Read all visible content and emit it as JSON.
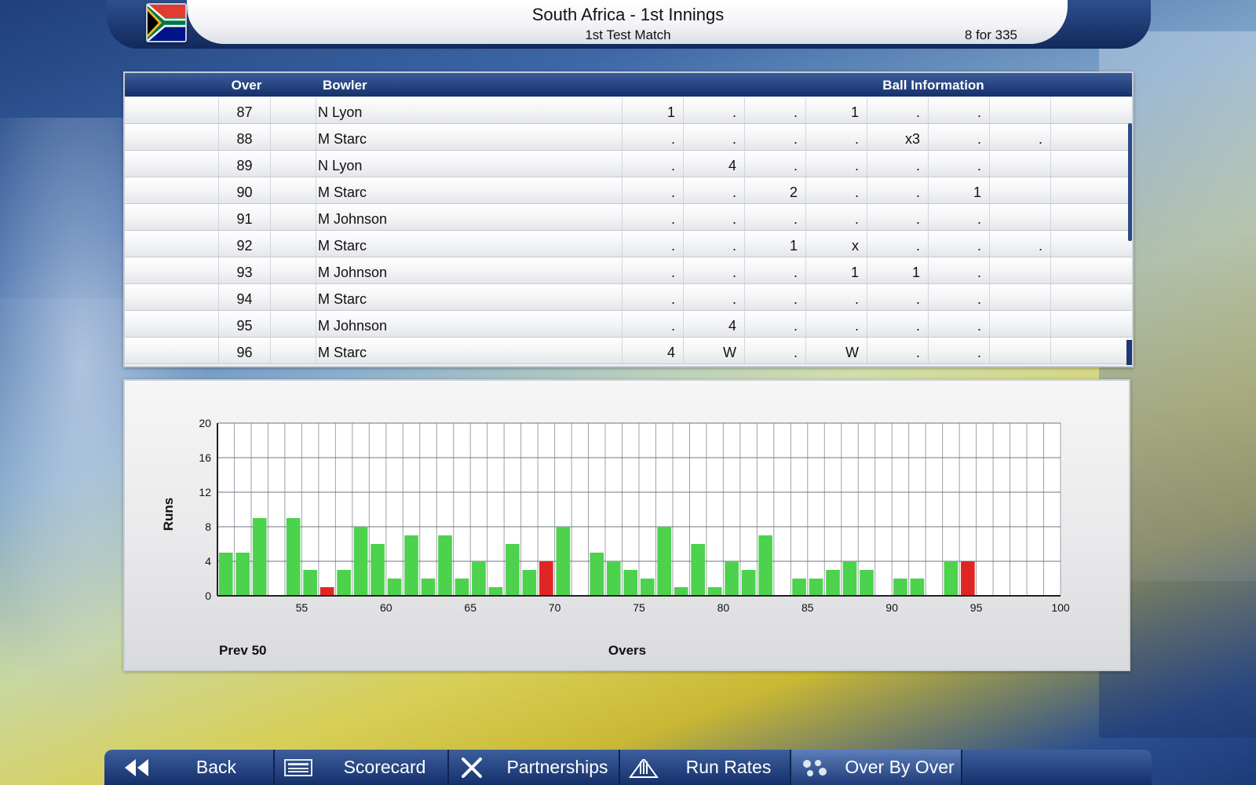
{
  "header": {
    "title": "South Africa - 1st Innings",
    "subtitle": "1st Test Match",
    "score": "8 for 335",
    "flag": "south-africa-flag"
  },
  "table": {
    "headers": {
      "over": "Over",
      "bowler": "Bowler",
      "ball_info": "Ball Information"
    },
    "rows": [
      {
        "over": "87",
        "bowler": "N Lyon",
        "balls": [
          "1",
          ".",
          ".",
          "1",
          ".",
          ".",
          ""
        ]
      },
      {
        "over": "88",
        "bowler": "M Starc",
        "balls": [
          ".",
          ".",
          ".",
          ".",
          "x3",
          ".",
          "."
        ]
      },
      {
        "over": "89",
        "bowler": "N Lyon",
        "balls": [
          ".",
          "4",
          ".",
          ".",
          ".",
          ".",
          ""
        ]
      },
      {
        "over": "90",
        "bowler": "M Starc",
        "balls": [
          ".",
          ".",
          "2",
          ".",
          ".",
          "1",
          ""
        ]
      },
      {
        "over": "91",
        "bowler": "M Johnson",
        "balls": [
          ".",
          ".",
          ".",
          ".",
          ".",
          ".",
          ""
        ]
      },
      {
        "over": "92",
        "bowler": "M Starc",
        "balls": [
          ".",
          ".",
          "1",
          "x",
          ".",
          ".",
          "."
        ]
      },
      {
        "over": "93",
        "bowler": "M Johnson",
        "balls": [
          ".",
          ".",
          ".",
          "1",
          "1",
          ".",
          ""
        ]
      },
      {
        "over": "94",
        "bowler": "M Starc",
        "balls": [
          ".",
          ".",
          ".",
          ".",
          ".",
          ".",
          ""
        ]
      },
      {
        "over": "95",
        "bowler": "M Johnson",
        "balls": [
          ".",
          "4",
          ".",
          ".",
          ".",
          ".",
          ""
        ]
      },
      {
        "over": "96",
        "bowler": "M Starc",
        "balls": [
          "4",
          "W",
          ".",
          "W",
          ".",
          ".",
          ""
        ]
      }
    ]
  },
  "chart_data": {
    "type": "bar",
    "xlabel": "Overs",
    "ylabel": "Runs",
    "xlim": [
      50,
      100
    ],
    "ylim": [
      0,
      20
    ],
    "yticks": [
      "0",
      "4",
      "8",
      "12",
      "16",
      "20"
    ],
    "xticks": [
      "55",
      "60",
      "65",
      "70",
      "75",
      "80",
      "85",
      "90",
      "95",
      "100"
    ],
    "grid": true,
    "colors": {
      "normal": "#4cd24c",
      "wicket": "#e02525"
    },
    "bars": [
      {
        "over": 51,
        "runs": 5,
        "wicket": false
      },
      {
        "over": 52,
        "runs": 5,
        "wicket": false
      },
      {
        "over": 53,
        "runs": 9,
        "wicket": false
      },
      {
        "over": 54,
        "runs": 0,
        "wicket": false
      },
      {
        "over": 55,
        "runs": 9,
        "wicket": false
      },
      {
        "over": 56,
        "runs": 3,
        "wicket": false
      },
      {
        "over": 57,
        "runs": 1,
        "wicket": true
      },
      {
        "over": 58,
        "runs": 3,
        "wicket": false
      },
      {
        "over": 59,
        "runs": 8,
        "wicket": false
      },
      {
        "over": 60,
        "runs": 6,
        "wicket": false
      },
      {
        "over": 61,
        "runs": 2,
        "wicket": false
      },
      {
        "over": 62,
        "runs": 7,
        "wicket": false
      },
      {
        "over": 63,
        "runs": 2,
        "wicket": false
      },
      {
        "over": 64,
        "runs": 7,
        "wicket": false
      },
      {
        "over": 65,
        "runs": 2,
        "wicket": false
      },
      {
        "over": 66,
        "runs": 4,
        "wicket": false
      },
      {
        "over": 67,
        "runs": 1,
        "wicket": false
      },
      {
        "over": 68,
        "runs": 6,
        "wicket": false
      },
      {
        "over": 69,
        "runs": 3,
        "wicket": false
      },
      {
        "over": 70,
        "runs": 4,
        "wicket": true
      },
      {
        "over": 71,
        "runs": 8,
        "wicket": false
      },
      {
        "over": 72,
        "runs": 0,
        "wicket": false
      },
      {
        "over": 73,
        "runs": 5,
        "wicket": false
      },
      {
        "over": 74,
        "runs": 4,
        "wicket": false
      },
      {
        "over": 75,
        "runs": 3,
        "wicket": false
      },
      {
        "over": 76,
        "runs": 2,
        "wicket": false
      },
      {
        "over": 77,
        "runs": 8,
        "wicket": false
      },
      {
        "over": 78,
        "runs": 1,
        "wicket": false
      },
      {
        "over": 79,
        "runs": 6,
        "wicket": false
      },
      {
        "over": 80,
        "runs": 1,
        "wicket": false
      },
      {
        "over": 81,
        "runs": 4,
        "wicket": false
      },
      {
        "over": 82,
        "runs": 3,
        "wicket": false
      },
      {
        "over": 83,
        "runs": 7,
        "wicket": false
      },
      {
        "over": 84,
        "runs": 0,
        "wicket": false
      },
      {
        "over": 85,
        "runs": 2,
        "wicket": false
      },
      {
        "over": 86,
        "runs": 2,
        "wicket": false
      },
      {
        "over": 87,
        "runs": 3,
        "wicket": false
      },
      {
        "over": 88,
        "runs": 4,
        "wicket": false
      },
      {
        "over": 89,
        "runs": 3,
        "wicket": false
      },
      {
        "over": 90,
        "runs": 0,
        "wicket": false
      },
      {
        "over": 91,
        "runs": 2,
        "wicket": false
      },
      {
        "over": 92,
        "runs": 2,
        "wicket": false
      },
      {
        "over": 93,
        "runs": 0,
        "wicket": false
      },
      {
        "over": 94,
        "runs": 4,
        "wicket": false
      },
      {
        "over": 95,
        "runs": 4,
        "wicket": true
      }
    ]
  },
  "chart_panel": {
    "prev_label": "Prev 50"
  },
  "nav": {
    "items": [
      {
        "label": "Back",
        "icon": "double-chevron-left-icon"
      },
      {
        "label": "Scorecard",
        "icon": "scorecard-icon"
      },
      {
        "label": "Partnerships",
        "icon": "crossed-bats-icon"
      },
      {
        "label": "Run Rates",
        "icon": "stumps-icon"
      },
      {
        "label": "Over By Over",
        "icon": "balls-icon",
        "active": true
      }
    ]
  }
}
